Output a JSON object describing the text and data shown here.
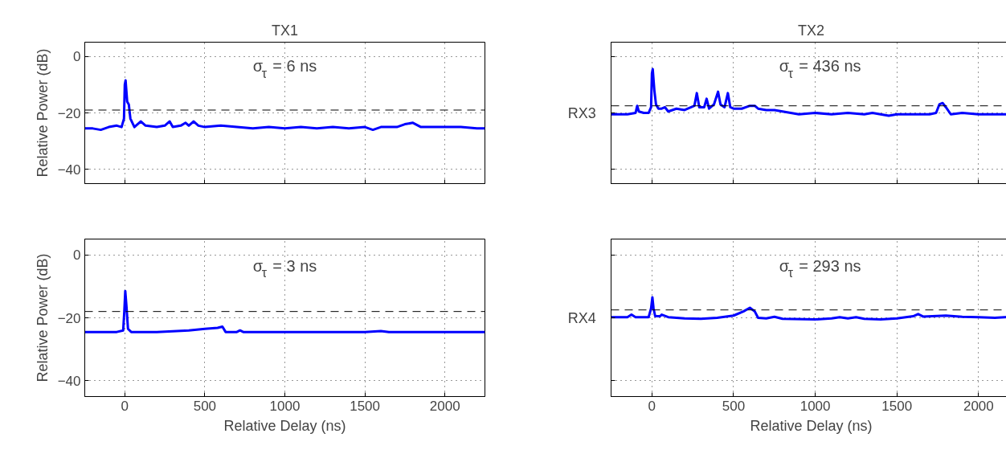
{
  "chart_data": [
    {
      "type": "line",
      "title": "TX1",
      "ylabel": "Relative Power (dB)",
      "tick_labels": "y",
      "grid": true,
      "xlim": [
        -250,
        2250
      ],
      "ylim": [
        -45,
        5
      ],
      "xticks": [
        0,
        500,
        1000,
        1500,
        2000
      ],
      "yticks": [
        -40,
        -20,
        0
      ],
      "annotations": [
        "σ$_{τ}$ = 6 ns"
      ],
      "ref_lines": [
        {
          "axis": "y",
          "value": -19,
          "color": "#000000",
          "line_style": "dashed"
        }
      ],
      "series": [
        {
          "color": "#0000ff",
          "x": [
            -250,
            -200,
            -150,
            -100,
            -50,
            -20,
            -5,
            0,
            5,
            15,
            25,
            35,
            60,
            100,
            130,
            200,
            250,
            280,
            300,
            350,
            380,
            400,
            430,
            460,
            500,
            600,
            700,
            800,
            900,
            1000,
            1100,
            1200,
            1300,
            1400,
            1500,
            1550,
            1600,
            1700,
            1750,
            1800,
            1850,
            1900,
            2000,
            2100,
            2200,
            2250
          ],
          "values": [
            -25.5,
            -25.5,
            -26,
            -25,
            -24.5,
            -25,
            -22,
            -10,
            -8.5,
            -16,
            -17,
            -22,
            -25,
            -23,
            -24.5,
            -25,
            -24.5,
            -23,
            -25,
            -24.5,
            -23.5,
            -24.5,
            -23,
            -24.5,
            -25,
            -24.5,
            -25,
            -25.5,
            -25,
            -25.5,
            -25,
            -25.5,
            -25,
            -25.5,
            -25,
            -26,
            -25,
            -25,
            -24,
            -23.5,
            -25,
            -25,
            -25,
            -25,
            -25.5,
            -25.5
          ]
        }
      ]
    },
    {
      "type": "line",
      "title": "TX2",
      "ylabel": "RX3",
      "tick_labels": false,
      "grid": true,
      "xlim": [
        -250,
        2200
      ],
      "ylim": [
        -45,
        5
      ],
      "xticks": [
        0,
        500,
        1000,
        1500,
        2000
      ],
      "yticks": [
        -40,
        -20,
        0
      ],
      "annotations": [
        "σ$_{τ}$ = 436 ns"
      ],
      "ref_lines": [
        {
          "axis": "y",
          "value": -17.5,
          "color": "#000000",
          "line_style": "dashed"
        }
      ],
      "series": [
        {
          "color": "#0000ff",
          "x": [
            -250,
            -150,
            -100,
            -90,
            -80,
            -50,
            -20,
            -5,
            0,
            5,
            15,
            25,
            40,
            60,
            80,
            100,
            150,
            200,
            240,
            260,
            275,
            290,
            320,
            335,
            350,
            380,
            405,
            420,
            445,
            465,
            480,
            500,
            550,
            600,
            630,
            650,
            700,
            750,
            800,
            900,
            1000,
            1100,
            1200,
            1300,
            1350,
            1400,
            1450,
            1500,
            1600,
            1700,
            1740,
            1760,
            1780,
            1800,
            1830,
            1900,
            2000,
            2100,
            2200
          ],
          "values": [
            -20.5,
            -20.5,
            -20,
            -17.5,
            -19.5,
            -20,
            -20,
            -18,
            -6,
            -4.5,
            -12,
            -17,
            -18.5,
            -18.5,
            -18,
            -19.5,
            -18.5,
            -19,
            -18,
            -17.5,
            -13,
            -18,
            -18,
            -15,
            -18.5,
            -17,
            -12.5,
            -17,
            -18,
            -13,
            -18,
            -18.5,
            -18.5,
            -17.5,
            -17.5,
            -18.5,
            -19,
            -19,
            -19.5,
            -20.5,
            -20,
            -20.5,
            -20,
            -20.5,
            -20,
            -20.5,
            -21,
            -20.5,
            -20.5,
            -20.5,
            -20,
            -17,
            -16.5,
            -18,
            -20.5,
            -20,
            -20.5,
            -20.5,
            -20.5
          ]
        }
      ]
    },
    {
      "type": "line",
      "xlabel": "Relative Delay (ns)",
      "ylabel": "Relative Power (dB)",
      "grid": true,
      "xlim": [
        -250,
        2250
      ],
      "ylim": [
        -45,
        5
      ],
      "xticks": [
        0,
        500,
        1000,
        1500,
        2000
      ],
      "yticks": [
        -40,
        -20,
        0
      ],
      "annotations": [
        "σ$_{τ}$ = 3 ns"
      ],
      "ref_lines": [
        {
          "axis": "y",
          "value": -18,
          "color": "#000000",
          "line_style": "dashed"
        }
      ],
      "series": [
        {
          "color": "#0000ff",
          "x": [
            -250,
            -50,
            -10,
            -3,
            3,
            10,
            20,
            40,
            200,
            400,
            500,
            580,
            610,
            630,
            700,
            720,
            740,
            1000,
            1500,
            1600,
            1650,
            2000,
            2250
          ],
          "values": [
            -24.5,
            -24.5,
            -24,
            -18,
            -11.5,
            -16,
            -23.5,
            -24.5,
            -24.5,
            -24,
            -23.5,
            -23.2,
            -22.8,
            -24.5,
            -24.5,
            -24,
            -24.5,
            -24.5,
            -24.5,
            -24.2,
            -24.5,
            -24.5,
            -24.5
          ]
        }
      ]
    },
    {
      "type": "line",
      "xlabel": "Relative Delay (ns)",
      "ylabel": "RX4",
      "tick_labels": "x",
      "grid": true,
      "xlim": [
        -250,
        2200
      ],
      "ylim": [
        -45,
        5
      ],
      "xticks": [
        0,
        500,
        1000,
        1500,
        2000
      ],
      "yticks": [
        -40,
        -20,
        0
      ],
      "annotations": [
        "σ$_{τ}$ = 293 ns"
      ],
      "ref_lines": [
        {
          "axis": "y",
          "value": -17.5,
          "color": "#000000",
          "line_style": "dashed"
        }
      ],
      "series": [
        {
          "color": "#0000ff",
          "x": [
            -250,
            -150,
            -125,
            -100,
            -20,
            -5,
            3,
            10,
            20,
            50,
            60,
            100,
            200,
            300,
            400,
            500,
            560,
            600,
            630,
            650,
            700,
            750,
            800,
            1000,
            1100,
            1150,
            1200,
            1250,
            1300,
            1400,
            1500,
            1600,
            1630,
            1660,
            1800,
            1900,
            2000,
            2100,
            2200
          ],
          "values": [
            -19.8,
            -19.8,
            -19,
            -19.8,
            -19.8,
            -17,
            -13.5,
            -17,
            -19.5,
            -19.5,
            -19,
            -19.8,
            -20.2,
            -20.3,
            -20,
            -19.3,
            -18,
            -16.8,
            -18,
            -20,
            -20.2,
            -19.7,
            -20.3,
            -20.5,
            -20.2,
            -19.8,
            -20.2,
            -19.8,
            -20.3,
            -20.5,
            -20.2,
            -19.5,
            -18.8,
            -19.6,
            -19.3,
            -19.7,
            -19.8,
            -20,
            -19.7
          ]
        }
      ]
    }
  ]
}
